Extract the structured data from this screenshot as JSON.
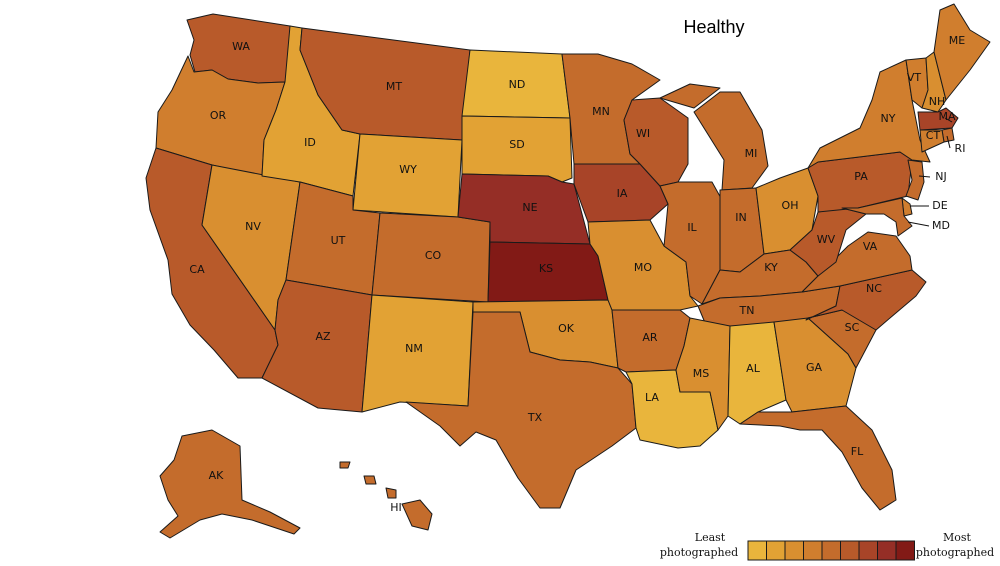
{
  "title": "Healthy",
  "legend": {
    "least_line1": "Least",
    "least_line2": "photographed",
    "most_line1": "Most",
    "most_line2": "photographed",
    "swatches": [
      "#e9b53c",
      "#e2a234",
      "#d98f30",
      "#d07e2e",
      "#c46c2c",
      "#b85a2a",
      "#a84428",
      "#952e26",
      "#821a16"
    ]
  },
  "states": [
    {
      "abbr": "WA",
      "shade": 5
    },
    {
      "abbr": "OR",
      "shade": 3
    },
    {
      "abbr": "CA",
      "shade": 5
    },
    {
      "abbr": "NV",
      "shade": 2
    },
    {
      "abbr": "ID",
      "shade": 1
    },
    {
      "abbr": "MT",
      "shade": 5
    },
    {
      "abbr": "WY",
      "shade": 1
    },
    {
      "abbr": "UT",
      "shade": 4
    },
    {
      "abbr": "CO",
      "shade": 4
    },
    {
      "abbr": "AZ",
      "shade": 5
    },
    {
      "abbr": "NM",
      "shade": 1
    },
    {
      "abbr": "ND",
      "shade": 0
    },
    {
      "abbr": "SD",
      "shade": 1
    },
    {
      "abbr": "NE",
      "shade": 7
    },
    {
      "abbr": "KS",
      "shade": 8
    },
    {
      "abbr": "OK",
      "shade": 2
    },
    {
      "abbr": "TX",
      "shade": 4
    },
    {
      "abbr": "MN",
      "shade": 4
    },
    {
      "abbr": "IA",
      "shade": 6
    },
    {
      "abbr": "MO",
      "shade": 2
    },
    {
      "abbr": "AR",
      "shade": 4
    },
    {
      "abbr": "LA",
      "shade": 0
    },
    {
      "abbr": "WI",
      "shade": 5
    },
    {
      "abbr": "IL",
      "shade": 4
    },
    {
      "abbr": "MI",
      "shade": 4
    },
    {
      "abbr": "IN",
      "shade": 4
    },
    {
      "abbr": "OH",
      "shade": 2
    },
    {
      "abbr": "KY",
      "shade": 4
    },
    {
      "abbr": "TN",
      "shade": 4
    },
    {
      "abbr": "MS",
      "shade": 2
    },
    {
      "abbr": "AL",
      "shade": 0
    },
    {
      "abbr": "GA",
      "shade": 2
    },
    {
      "abbr": "FL",
      "shade": 4
    },
    {
      "abbr": "SC",
      "shade": 4
    },
    {
      "abbr": "NC",
      "shade": 5
    },
    {
      "abbr": "VA",
      "shade": 4
    },
    {
      "abbr": "WV",
      "shade": 5
    },
    {
      "abbr": "PA",
      "shade": 5
    },
    {
      "abbr": "NY",
      "shade": 3
    },
    {
      "abbr": "VT",
      "shade": 3
    },
    {
      "abbr": "NH",
      "shade": 2
    },
    {
      "abbr": "ME",
      "shade": 3
    },
    {
      "abbr": "MA",
      "shade": 6
    },
    {
      "abbr": "RI",
      "shade": 4
    },
    {
      "abbr": "CT",
      "shade": 3
    },
    {
      "abbr": "NJ",
      "shade": 4
    },
    {
      "abbr": "DE",
      "shade": 3
    },
    {
      "abbr": "MD",
      "shade": 4
    },
    {
      "abbr": "AK",
      "shade": 4
    },
    {
      "abbr": "HI",
      "shade": 4
    }
  ]
}
